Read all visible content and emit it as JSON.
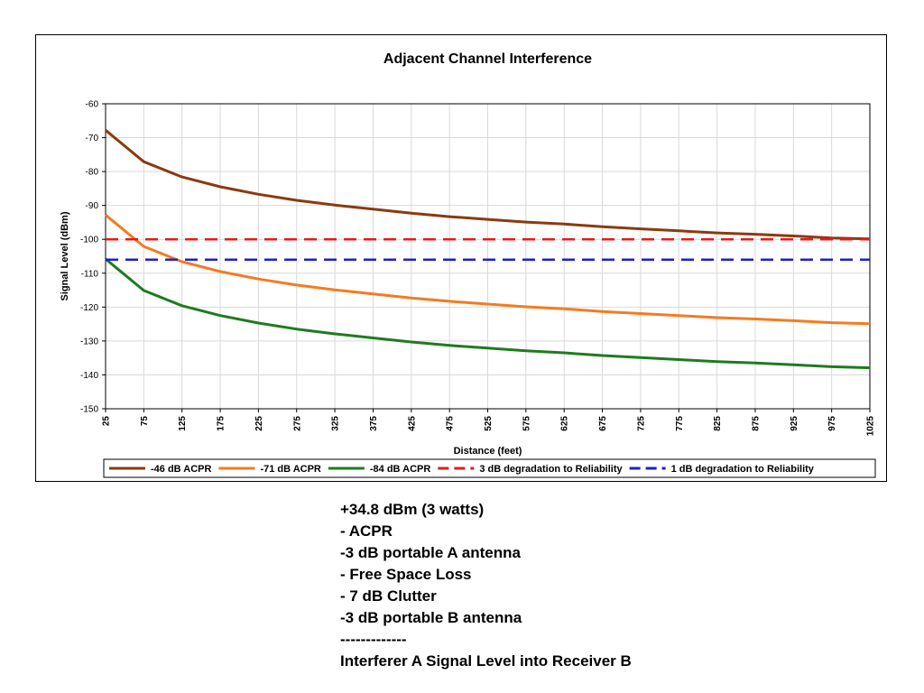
{
  "chart_data": {
    "type": "line",
    "title": "Adjacent Channel Interference",
    "xlabel": "Distance (feet)",
    "ylabel": "Signal Level (dBm)",
    "x": [
      25,
      75,
      125,
      175,
      225,
      275,
      325,
      375,
      425,
      475,
      525,
      575,
      625,
      675,
      725,
      775,
      825,
      875,
      925,
      975,
      1025
    ],
    "ylim": [
      -150,
      -60
    ],
    "yticks": [
      -60,
      -70,
      -80,
      -90,
      -100,
      -110,
      -120,
      -130,
      -140,
      -150
    ],
    "grid": true,
    "legend_position": "bottom",
    "series": [
      {
        "name": "-46 dB ACPR",
        "color": "#8B3A0F",
        "dash": false,
        "values": [
          -67.8,
          -77.1,
          -81.6,
          -84.5,
          -86.7,
          -88.5,
          -89.9,
          -91.1,
          -92.3,
          -93.3,
          -94.1,
          -94.9,
          -95.5,
          -96.3,
          -96.9,
          -97.5,
          -98.1,
          -98.5,
          -99.0,
          -99.6,
          -99.9
        ]
      },
      {
        "name": "-71 dB ACPR",
        "color": "#F47B20",
        "dash": false,
        "values": [
          -92.8,
          -102.1,
          -106.6,
          -109.5,
          -111.7,
          -113.5,
          -114.9,
          -116.1,
          -117.3,
          -118.3,
          -119.1,
          -119.9,
          -120.5,
          -121.3,
          -121.9,
          -122.5,
          -123.1,
          -123.5,
          -124.0,
          -124.6,
          -124.9
        ]
      },
      {
        "name": "-84 dB ACPR",
        "color": "#1E7B1E",
        "dash": false,
        "values": [
          -105.8,
          -115.1,
          -119.6,
          -122.5,
          -124.7,
          -126.5,
          -127.9,
          -129.1,
          -130.3,
          -131.3,
          -132.1,
          -132.9,
          -133.5,
          -134.3,
          -134.9,
          -135.5,
          -136.1,
          -136.5,
          -137.0,
          -137.6,
          -137.9
        ]
      },
      {
        "name": "3 dB degradation to Reliability",
        "color": "#E41A1C",
        "dash": true,
        "values": [
          -100,
          -100,
          -100,
          -100,
          -100,
          -100,
          -100,
          -100,
          -100,
          -100,
          -100,
          -100,
          -100,
          -100,
          -100,
          -100,
          -100,
          -100,
          -100,
          -100,
          -100
        ]
      },
      {
        "name": "1 dB degradation to Reliability",
        "color": "#1F1FCC",
        "dash": true,
        "values": [
          -106,
          -106,
          -106,
          -106,
          -106,
          -106,
          -106,
          -106,
          -106,
          -106,
          -106,
          -106,
          -106,
          -106,
          -106,
          -106,
          -106,
          -106,
          -106,
          -106,
          -106
        ]
      }
    ]
  },
  "notes": [
    "+34.8 dBm (3 watts)",
    "- ACPR",
    "-3 dB portable A antenna",
    "- Free Space Loss",
    "- 7 dB Clutter",
    "-3 dB portable B antenna",
    "-------------",
    "Interferer A Signal Level into Receiver B"
  ]
}
